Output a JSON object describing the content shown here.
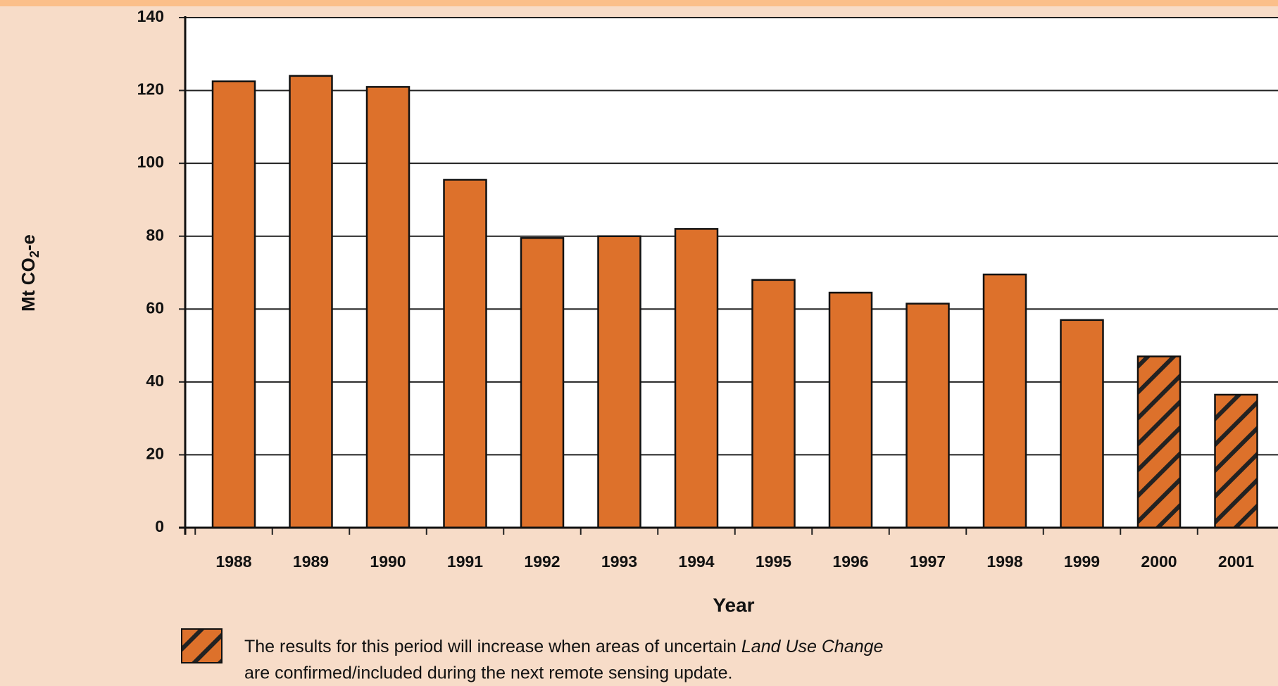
{
  "chart_data": {
    "type": "bar",
    "ylabel": [
      "Mt CO",
      "2",
      "-e"
    ],
    "xlabel": "Year",
    "categories": [
      "1988",
      "1989",
      "1990",
      "1991",
      "1992",
      "1993",
      "1994",
      "1995",
      "1996",
      "1997",
      "1998",
      "1999",
      "2000",
      "2001"
    ],
    "values": [
      122.5,
      124,
      121,
      95.5,
      79.5,
      80,
      82,
      68,
      64.5,
      61.5,
      69.5,
      57,
      47,
      36.5
    ],
    "hatched": [
      false,
      false,
      false,
      false,
      false,
      false,
      false,
      false,
      false,
      false,
      false,
      false,
      true,
      true
    ],
    "color": "#dd712b",
    "ylim": [
      0,
      140
    ],
    "yticks": [
      0,
      20,
      40,
      60,
      80,
      100,
      120,
      140
    ],
    "grid": true,
    "note": [
      "The results for this period will increase when areas of uncertain ",
      "Land Use Change",
      "are confirmed/included during the next remote sensing update."
    ]
  }
}
